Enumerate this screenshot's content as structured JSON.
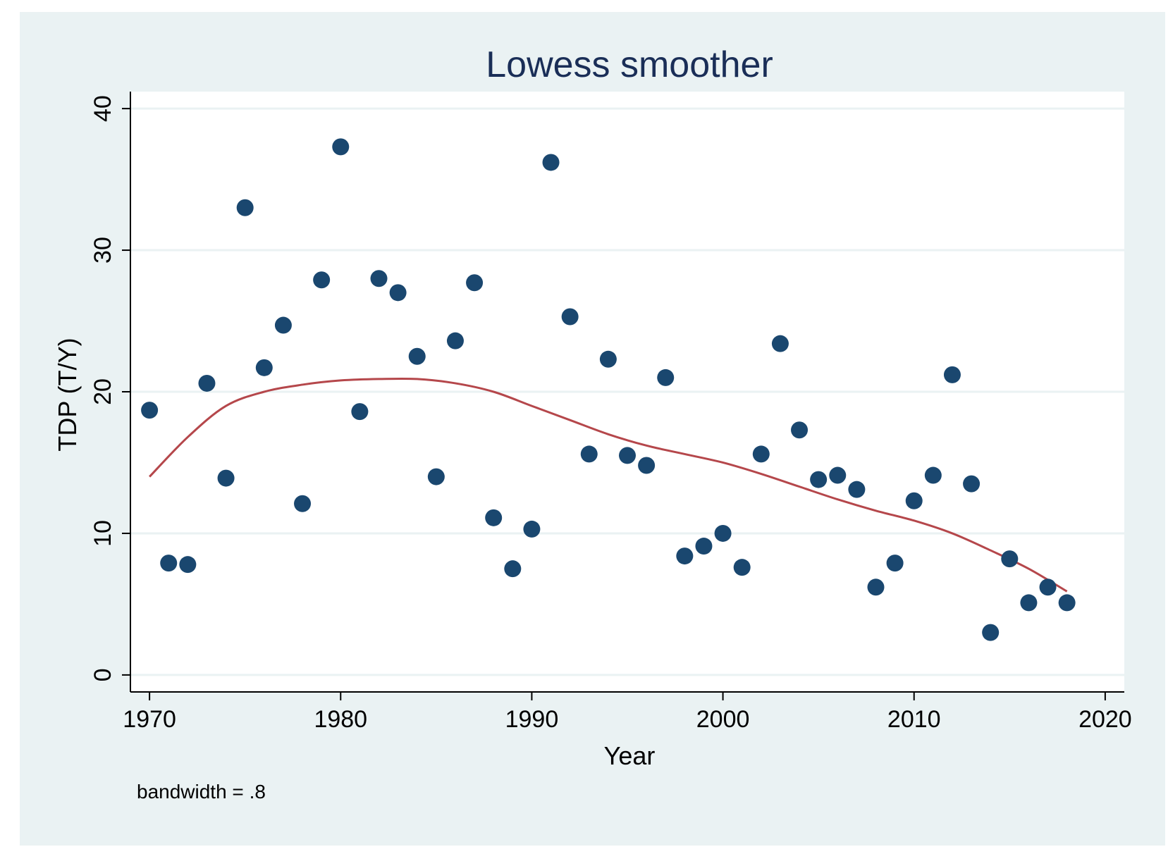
{
  "chart_data": {
    "type": "scatter",
    "title": "Lowess smoother",
    "xlabel": "Year",
    "ylabel": "TDP (T/Y)",
    "note": "bandwidth = .8",
    "xlim": [
      1969,
      2021
    ],
    "ylim": [
      -1.2,
      41.2
    ],
    "xticks": [
      1970,
      1980,
      1990,
      2000,
      2010,
      2020
    ],
    "yticks": [
      0,
      10,
      20,
      30,
      40
    ],
    "grid": true,
    "colors": {
      "points": "#1a476f",
      "smoother": "#b5474b",
      "grid": "#eaf2f3",
      "plot_bg": "#ffffff",
      "outer_bg": "#eaf2f3",
      "title": "#1a2e57"
    },
    "series": [
      {
        "name": "TDP (T/Y)",
        "type": "scatter",
        "x": [
          1970,
          1971,
          1972,
          1973,
          1974,
          1975,
          1976,
          1977,
          1978,
          1979,
          1980,
          1981,
          1982,
          1983,
          1984,
          1985,
          1986,
          1987,
          1988,
          1989,
          1990,
          1991,
          1992,
          1993,
          1994,
          1995,
          1996,
          1997,
          1998,
          1999,
          2000,
          2001,
          2002,
          2003,
          2004,
          2005,
          2006,
          2007,
          2008,
          2009,
          2010,
          2011,
          2012,
          2013,
          2014,
          2015,
          2016,
          2017,
          2018
        ],
        "y": [
          18.7,
          7.9,
          7.8,
          20.6,
          13.9,
          33.0,
          21.7,
          24.7,
          12.1,
          27.9,
          37.3,
          18.6,
          28.0,
          27.0,
          22.5,
          14.0,
          23.6,
          27.7,
          11.1,
          7.5,
          10.3,
          36.2,
          25.3,
          15.6,
          22.3,
          15.5,
          14.8,
          21.0,
          8.4,
          9.1,
          10.0,
          7.6,
          15.6,
          23.4,
          17.3,
          13.8,
          14.1,
          13.1,
          6.2,
          7.9,
          12.3,
          14.1,
          21.2,
          13.5,
          3.0,
          8.2,
          5.1,
          6.2,
          5.1
        ]
      },
      {
        "name": "lowess",
        "type": "line",
        "x": [
          1970,
          1972,
          1974,
          1976,
          1978,
          1980,
          1982,
          1984,
          1986,
          1988,
          1990,
          1992,
          1994,
          1996,
          1998,
          2000,
          2002,
          2004,
          2006,
          2008,
          2010,
          2012,
          2014,
          2016,
          2018
        ],
        "y": [
          14.0,
          16.8,
          19.0,
          20.0,
          20.5,
          20.8,
          20.9,
          20.9,
          20.6,
          20.0,
          19.0,
          18.0,
          17.0,
          16.2,
          15.6,
          15.0,
          14.2,
          13.3,
          12.4,
          11.6,
          10.9,
          10.0,
          8.8,
          7.5,
          5.9
        ]
      }
    ]
  }
}
